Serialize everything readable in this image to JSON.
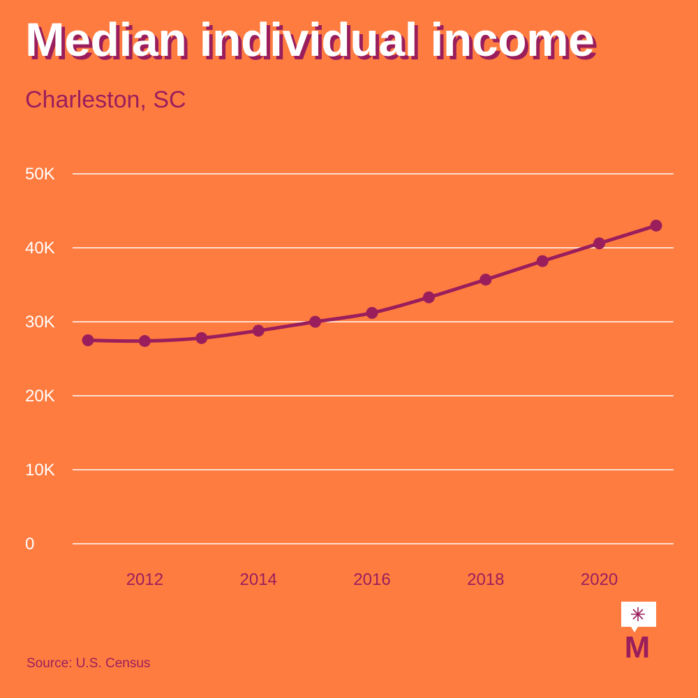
{
  "header": {
    "title": "Median individual income",
    "subtitle": "Charleston, SC"
  },
  "footer": {
    "source": "Source: U.S. Census"
  },
  "colors": {
    "background": "#FF7C40",
    "accent": "#9A1E5C",
    "grid": "#FFFFFF",
    "title": "#FFFFFF"
  },
  "logo": {
    "icon": "asterisk-speech-bubble-icon",
    "letter": "M"
  },
  "chart_data": {
    "type": "line",
    "title": "Median individual income",
    "subtitle": "Charleston, SC",
    "x": [
      2011,
      2012,
      2013,
      2014,
      2015,
      2016,
      2017,
      2018,
      2019,
      2020,
      2021
    ],
    "series": [
      {
        "values": [
          27500,
          27400,
          27800,
          28800,
          30000,
          31200,
          33300,
          35700,
          38200,
          40600,
          43000
        ]
      }
    ],
    "x_ticks": [
      2012,
      2014,
      2016,
      2018,
      2020
    ],
    "y_ticks": [
      0,
      10000,
      20000,
      30000,
      40000,
      50000
    ],
    "y_tick_labels": [
      "0",
      "10K",
      "20K",
      "30K",
      "40K",
      "50K"
    ],
    "xlim": [
      2011,
      2021
    ],
    "ylim": [
      0,
      50000
    ],
    "grid": "horizontal",
    "markers": true,
    "xlabel": "",
    "ylabel": ""
  }
}
